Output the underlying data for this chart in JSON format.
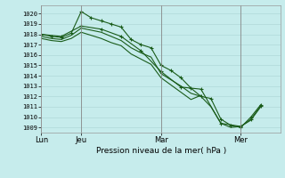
{
  "background_color": "#c6ecec",
  "grid_color": "#b0d8d8",
  "line_color": "#1a5c1a",
  "xlabel": "Pression niveau de la mer( hPa )",
  "ylim": [
    1008.5,
    1020.8
  ],
  "yticks": [
    1009,
    1010,
    1011,
    1012,
    1013,
    1014,
    1015,
    1016,
    1017,
    1018,
    1019,
    1020
  ],
  "xtick_labels": [
    "Lun",
    "Jeu",
    "Mar",
    "Mer"
  ],
  "xtick_positions": [
    0,
    12,
    36,
    60
  ],
  "vlines": [
    0,
    12,
    36,
    60
  ],
  "xlim": [
    0,
    72
  ],
  "series": [
    {
      "x": [
        0,
        3,
        6,
        9,
        12,
        15,
        18,
        21,
        24,
        27,
        30,
        33,
        36,
        39,
        42,
        45,
        48,
        51,
        54,
        57,
        60,
        63,
        66
      ],
      "y": [
        1018.0,
        1017.8,
        1017.7,
        1018.1,
        1020.2,
        1019.6,
        1019.3,
        1019.0,
        1018.7,
        1017.5,
        1017.0,
        1016.7,
        1015.0,
        1014.5,
        1013.8,
        1012.8,
        1012.0,
        1011.8,
        1009.8,
        1009.2,
        1009.0,
        1010.0,
        1011.2
      ],
      "has_marker": true
    },
    {
      "x": [
        0,
        3,
        6,
        9,
        12,
        15,
        18,
        21,
        24,
        27,
        30,
        33,
        36,
        39,
        42,
        45,
        48,
        51,
        54,
        57,
        60,
        63,
        66
      ],
      "y": [
        1017.8,
        1017.6,
        1017.5,
        1017.9,
        1018.6,
        1018.4,
        1018.2,
        1017.8,
        1017.4,
        1016.7,
        1016.2,
        1015.8,
        1014.2,
        1013.6,
        1013.0,
        1012.3,
        1012.0,
        1011.0,
        1009.4,
        1009.0,
        1009.1,
        1009.7,
        1011.0
      ],
      "has_marker": false
    },
    {
      "x": [
        0,
        3,
        6,
        9,
        12,
        15,
        18,
        21,
        24,
        27,
        30,
        33,
        36,
        39,
        42,
        45,
        48
      ],
      "y": [
        1017.6,
        1017.4,
        1017.3,
        1017.6,
        1018.2,
        1017.9,
        1017.6,
        1017.2,
        1016.9,
        1016.1,
        1015.6,
        1015.1,
        1013.8,
        1013.1,
        1012.4,
        1011.7,
        1012.1
      ],
      "has_marker": false
    },
    {
      "x": [
        0,
        6,
        12,
        18,
        24,
        30,
        36,
        42,
        48,
        54,
        60,
        63,
        66
      ],
      "y": [
        1018.0,
        1017.8,
        1018.8,
        1018.5,
        1017.8,
        1016.4,
        1014.4,
        1012.9,
        1012.7,
        1009.4,
        1009.1,
        1009.8,
        1011.1
      ],
      "has_marker": true
    }
  ]
}
